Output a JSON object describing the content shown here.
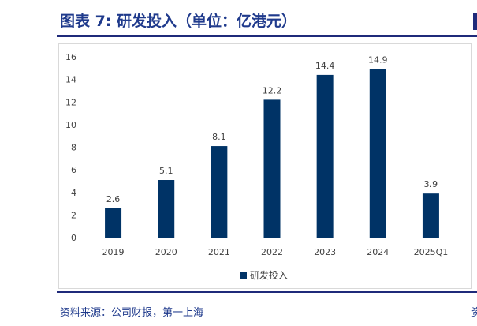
{
  "figure": {
    "title": "图表 7: 研发投入（单位：亿港元）",
    "source": "资料来源：公司财报，第一上海"
  },
  "colors": {
    "bar": "#003366",
    "title": "#1f3a8c",
    "rule": "#1f2a7a"
  },
  "chart_data": {
    "type": "bar",
    "title": "",
    "xlabel": "",
    "ylabel": "",
    "categories": [
      "2019",
      "2020",
      "2021",
      "2022",
      "2023",
      "2024",
      "2025Q1"
    ],
    "series": [
      {
        "name": "研发投入",
        "values": [
          2.6,
          5.1,
          8.1,
          12.2,
          14.4,
          14.9,
          3.9
        ]
      }
    ],
    "ylim": [
      0,
      16
    ],
    "yticks": [
      0,
      2,
      4,
      6,
      8,
      10,
      12,
      14,
      16
    ],
    "grid": false,
    "legend": "bottom-center",
    "data_labels": true
  }
}
